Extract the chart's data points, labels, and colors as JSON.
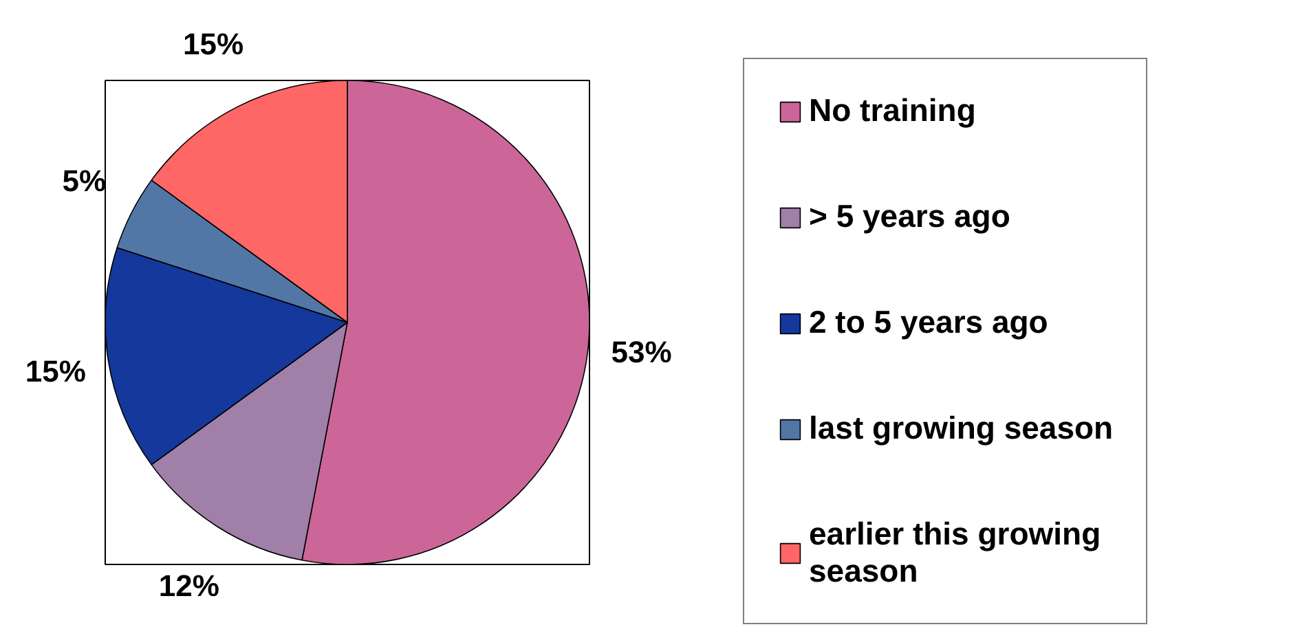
{
  "chart_data": {
    "type": "pie",
    "categories": [
      "No training",
      "> 5 years ago",
      "2 to 5 years ago",
      "last growing season",
      "earlier this growing season"
    ],
    "values": [
      53,
      12,
      15,
      5,
      15
    ],
    "colors": [
      "#cc6699",
      "#a07fa8",
      "#14389c",
      "#5277a6",
      "#ff6666"
    ],
    "value_labels": [
      "53%",
      "12%",
      "15%",
      "5%",
      "15%"
    ],
    "legend": "right"
  }
}
